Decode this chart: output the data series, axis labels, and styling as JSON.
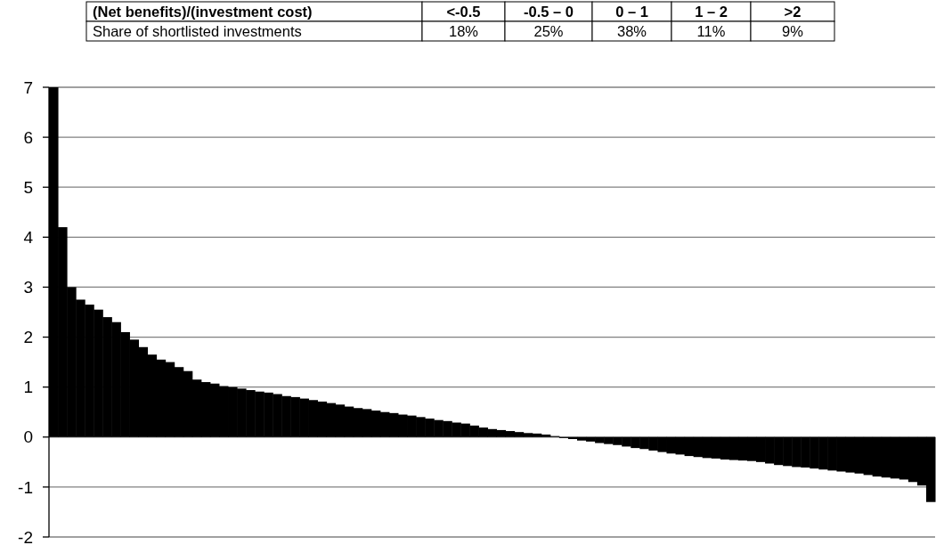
{
  "chart_data": {
    "type": "bar",
    "categories": [
      null,
      null,
      null,
      null,
      null,
      null,
      null,
      null,
      null,
      null,
      null,
      null,
      null,
      null,
      null,
      null,
      null,
      null,
      null,
      null,
      null,
      null,
      null,
      null,
      null,
      null,
      null,
      null,
      null,
      null,
      null,
      null,
      null,
      null,
      null,
      null,
      null,
      null,
      null,
      null,
      null,
      null,
      null,
      null,
      null,
      null,
      null,
      null,
      null,
      null,
      null,
      null,
      null,
      null,
      null,
      null,
      null,
      null,
      null,
      null,
      null,
      null,
      null,
      null,
      null,
      null,
      null,
      null,
      null,
      null,
      null,
      null,
      null,
      null,
      null,
      null,
      null,
      null,
      null,
      null,
      null,
      null,
      null,
      null,
      null,
      null,
      null,
      null,
      null,
      null,
      null,
      null,
      null,
      null,
      null,
      null,
      null,
      null,
      null
    ],
    "values": [
      7,
      4.2,
      3.0,
      2.75,
      2.65,
      2.55,
      2.4,
      2.3,
      2.1,
      1.95,
      1.8,
      1.65,
      1.55,
      1.5,
      1.4,
      1.32,
      1.15,
      1.1,
      1.07,
      1.02,
      1.0,
      0.97,
      0.94,
      0.91,
      0.89,
      0.86,
      0.82,
      0.8,
      0.77,
      0.74,
      0.71,
      0.68,
      0.65,
      0.61,
      0.58,
      0.56,
      0.53,
      0.5,
      0.48,
      0.45,
      0.43,
      0.4,
      0.37,
      0.34,
      0.32,
      0.29,
      0.27,
      0.23,
      0.19,
      0.16,
      0.14,
      0.12,
      0.1,
      0.08,
      0.07,
      0.05,
      0.02,
      -0.02,
      -0.04,
      -0.07,
      -0.09,
      -0.12,
      -0.14,
      -0.16,
      -0.19,
      -0.22,
      -0.24,
      -0.27,
      -0.3,
      -0.33,
      -0.35,
      -0.38,
      -0.4,
      -0.42,
      -0.43,
      -0.45,
      -0.46,
      -0.47,
      -0.48,
      -0.5,
      -0.53,
      -0.56,
      -0.58,
      -0.6,
      -0.61,
      -0.63,
      -0.65,
      -0.67,
      -0.69,
      -0.71,
      -0.73,
      -0.76,
      -0.79,
      -0.81,
      -0.83,
      -0.85,
      -0.9,
      -0.97,
      -1.3
    ],
    "color": "#000000",
    "ylim": [
      -2,
      7
    ],
    "yticks": [
      -2,
      -1,
      0,
      1,
      2,
      3,
      4,
      5,
      6,
      7
    ],
    "grid": "y",
    "tick_labels": "y",
    "annotations": [
      "(Net benefits)/(investment cost)",
      "<-0.5",
      "-0.5 – 0",
      "0 – 1",
      "1 – 2",
      ">2",
      "Share of shortlisted investments",
      "18%",
      "25%",
      "38%",
      "11%",
      "9%"
    ]
  }
}
